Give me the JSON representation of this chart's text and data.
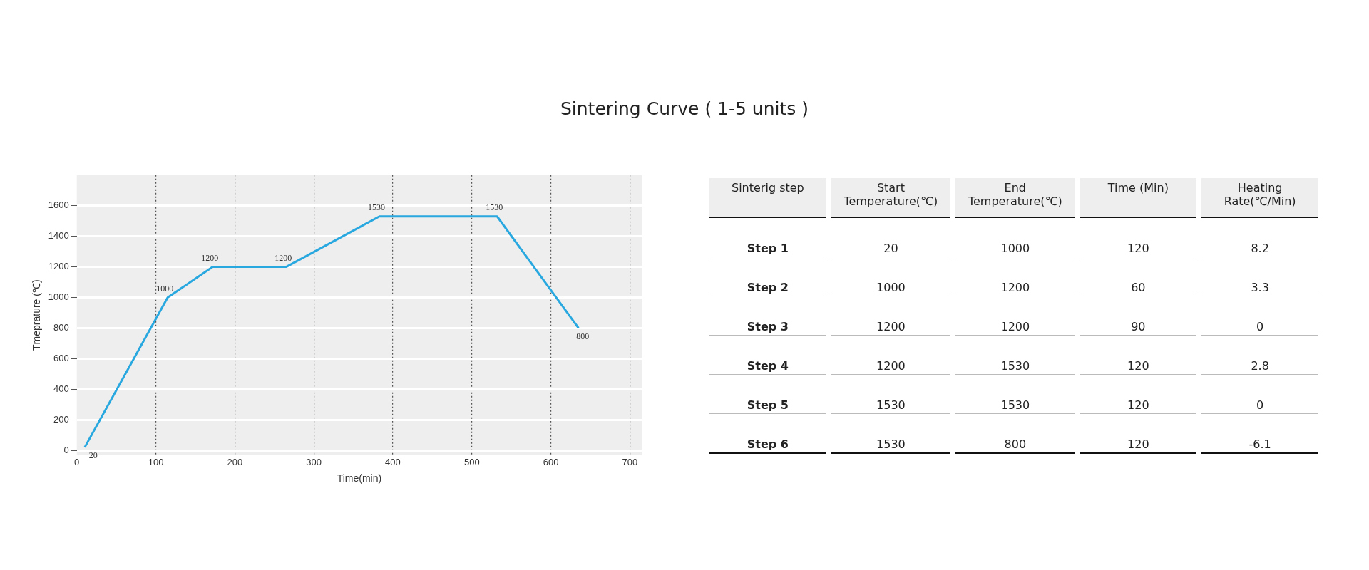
{
  "chart_data": [
    {
      "type": "line",
      "title": "Sintering Curve ( 1-5 units )",
      "xlabel": "Time(min)",
      "ylabel": "Tmeprature (℃)",
      "x": [
        10,
        115,
        172,
        265,
        383,
        532,
        635
      ],
      "series": [
        {
          "color": "#29a8e0",
          "values": [
            20,
            1000,
            1200,
            1200,
            1530,
            1530,
            800
          ]
        }
      ],
      "xlim": [
        0,
        715
      ],
      "xticks": [
        0,
        100,
        200,
        300,
        400,
        500,
        600,
        700
      ],
      "ylim": [
        -30,
        1800
      ],
      "yticks": [
        0,
        200,
        400,
        600,
        800,
        1000,
        1200,
        1400,
        1600
      ],
      "grid": true,
      "legend": false,
      "marker": "none",
      "line_style": "solid",
      "data_labels": true
    },
    {
      "type": "other",
      "xlabel": "Sinterig step",
      "data_labels": true,
      "categories": [
        "Step 1",
        "Step 2",
        "Step 3",
        "Step 4",
        "Step 5",
        "Step 6"
      ],
      "series": [
        {
          "name": "Start Temperature(℃)",
          "values": [
            20,
            1000,
            1200,
            1200,
            1530,
            1530
          ]
        },
        {
          "name": "End Temperature(℃)",
          "values": [
            1000,
            1200,
            1200,
            1530,
            1530,
            800
          ]
        },
        {
          "name": "Time (Min)",
          "values": [
            120,
            60,
            90,
            120,
            120,
            120
          ]
        },
        {
          "name": "Heating Rate(℃/Min)",
          "values": [
            8.2,
            3.3,
            0,
            2.8,
            0,
            -6.1
          ]
        }
      ]
    }
  ]
}
